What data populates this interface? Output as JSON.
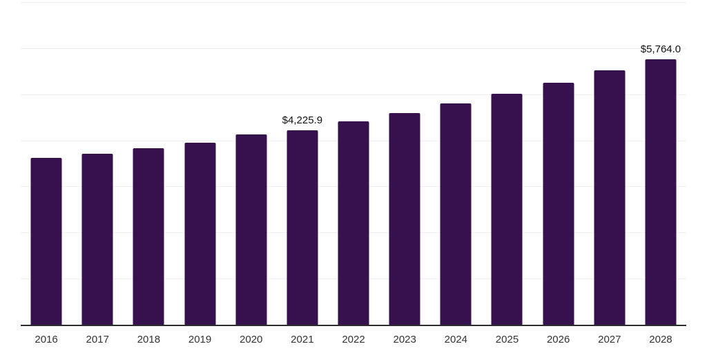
{
  "chart": {
    "background_color": "#ffffff",
    "bar_color": "#35114E",
    "axis_line_color": "#2b2b2b",
    "gridline_color": "#f0f0f0",
    "tick_label_color": "#333333",
    "data_label_color": "#111111"
  },
  "chart_data": {
    "type": "bar",
    "title": "",
    "subtitle": "",
    "xlabel": "",
    "ylabel": "",
    "legend": false,
    "grid": true,
    "grid_step": 1000,
    "ylim": [
      0,
      7000
    ],
    "categories": [
      "2016",
      "2017",
      "2018",
      "2019",
      "2020",
      "2021",
      "2022",
      "2023",
      "2024",
      "2025",
      "2026",
      "2027",
      "2028"
    ],
    "values": [
      3620,
      3715,
      3830,
      3950,
      4125,
      4225.9,
      4410,
      4590,
      4800,
      5010,
      5245,
      5515,
      5764.0
    ],
    "data_labels": [
      "",
      "",
      "",
      "",
      "",
      "$4,225.9",
      "",
      "",
      "",
      "",
      "",
      "",
      "$5,764.0"
    ]
  }
}
